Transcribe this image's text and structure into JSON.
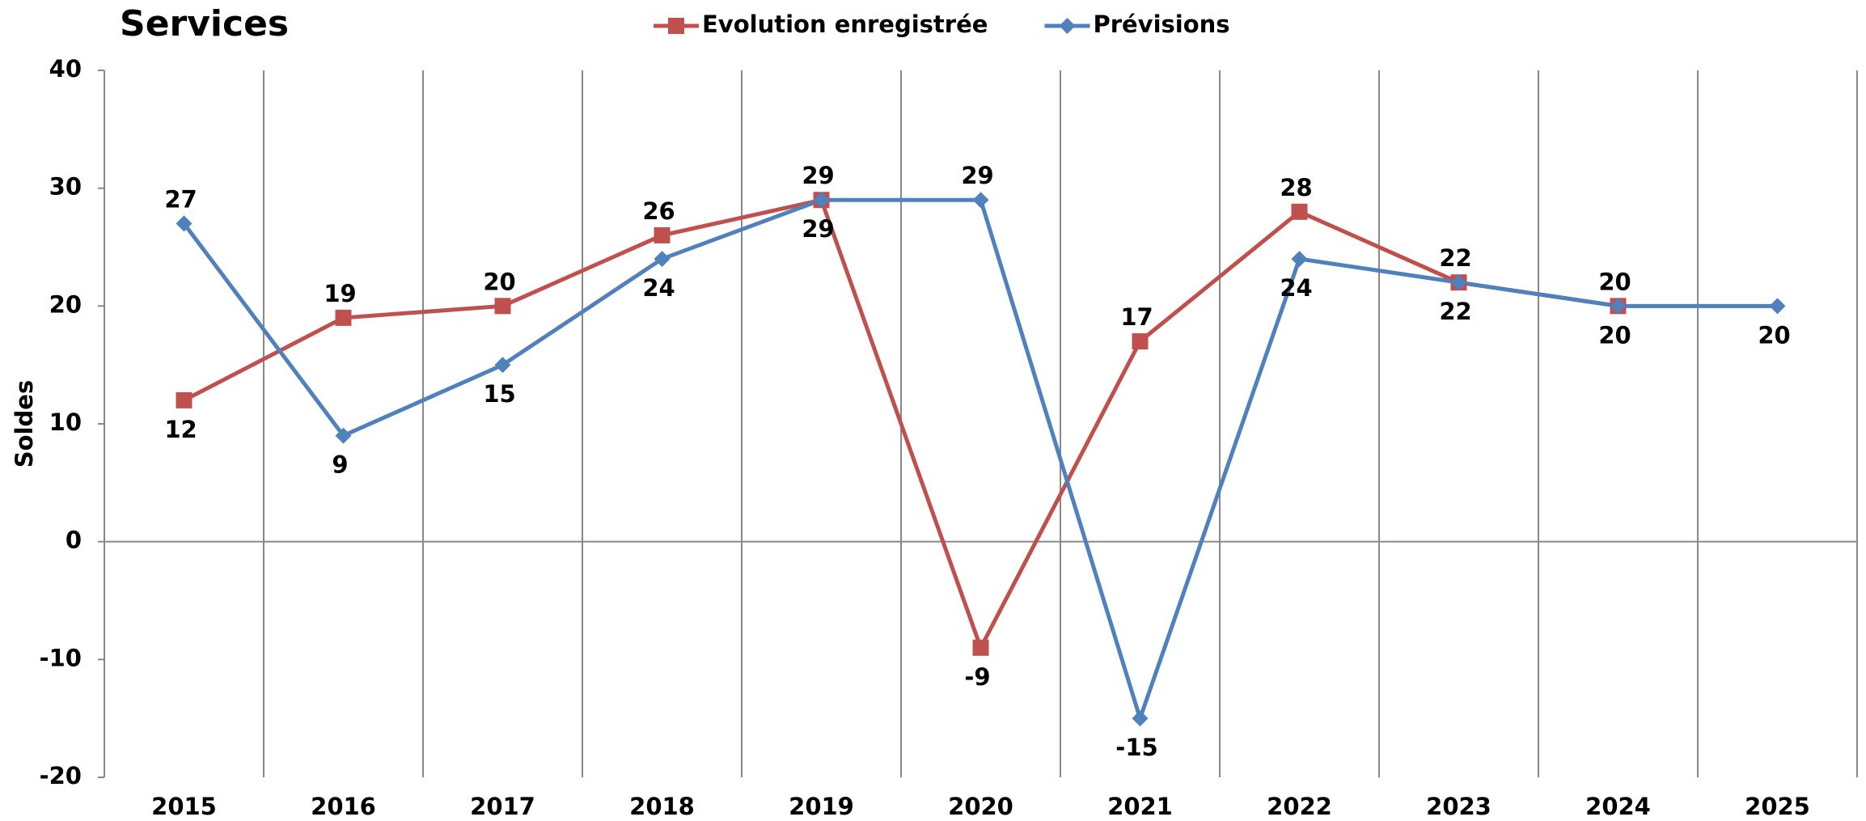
{
  "chart_data": {
    "type": "line",
    "title": "Services",
    "y_label": "Soldes",
    "categories": [
      "2015",
      "2016",
      "2017",
      "2018",
      "2019",
      "2020",
      "2021",
      "2022",
      "2023",
      "2024",
      "2025"
    ],
    "series": [
      {
        "name": "Evolution enregistrée",
        "color": "#c0504d",
        "marker": "square",
        "values": [
          12,
          19,
          20,
          26,
          29,
          -9,
          17,
          28,
          22,
          20,
          null
        ]
      },
      {
        "name": "Prévisions",
        "color": "#4f81bd",
        "marker": "diamond",
        "values": [
          27,
          9,
          15,
          24,
          29,
          29,
          -15,
          24,
          22,
          20,
          20
        ]
      }
    ],
    "ylim": [
      -20,
      40
    ],
    "yticks": [
      -20,
      -10,
      0,
      10,
      20,
      30,
      40
    ],
    "grid": true
  }
}
